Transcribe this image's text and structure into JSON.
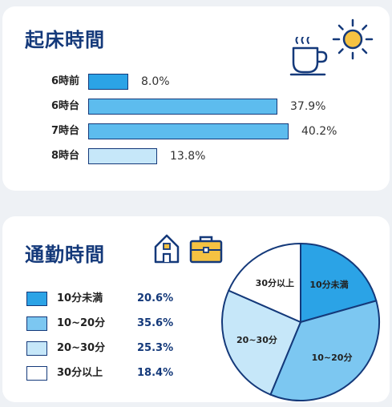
{
  "wake": {
    "title": "起床時間",
    "icons": [
      "coffee-cup-icon",
      "sun-icon"
    ]
  },
  "commute": {
    "title": "通勤時間",
    "icons": [
      "house-icon",
      "briefcase-icon"
    ]
  },
  "colors": {
    "outline": "#14397a",
    "bar_fill": "#5dbcee",
    "bar_fill_dark": "#2ba3e6",
    "bar_fill_light": "#c6e7f9",
    "value_text": "#14397a"
  },
  "chart_data": [
    {
      "type": "bar",
      "orientation": "horizontal",
      "title": "起床時間",
      "categories": [
        "6時前",
        "6時台",
        "7時台",
        "8時台"
      ],
      "values": [
        8.0,
        37.9,
        40.2,
        13.8
      ],
      "value_labels": [
        "8.0%",
        "37.9%",
        "40.2%",
        "13.8%"
      ],
      "colors": [
        "#2ba3e6",
        "#5dbcee",
        "#5dbcee",
        "#c6e7f9"
      ],
      "xlim": [
        0,
        40.2
      ],
      "grid": false
    },
    {
      "type": "pie",
      "title": "通勤時間",
      "categories": [
        "10分未満",
        "10~20分",
        "20~30分",
        "30分以上"
      ],
      "values": [
        20.6,
        35.6,
        25.3,
        18.4
      ],
      "value_labels": [
        "20.6%",
        "35.6%",
        "25.3%",
        "18.4%"
      ],
      "colors": [
        "#2ba3e6",
        "#7cc7f1",
        "#c6e7f9",
        "#ffffff"
      ],
      "legend": "left"
    }
  ]
}
